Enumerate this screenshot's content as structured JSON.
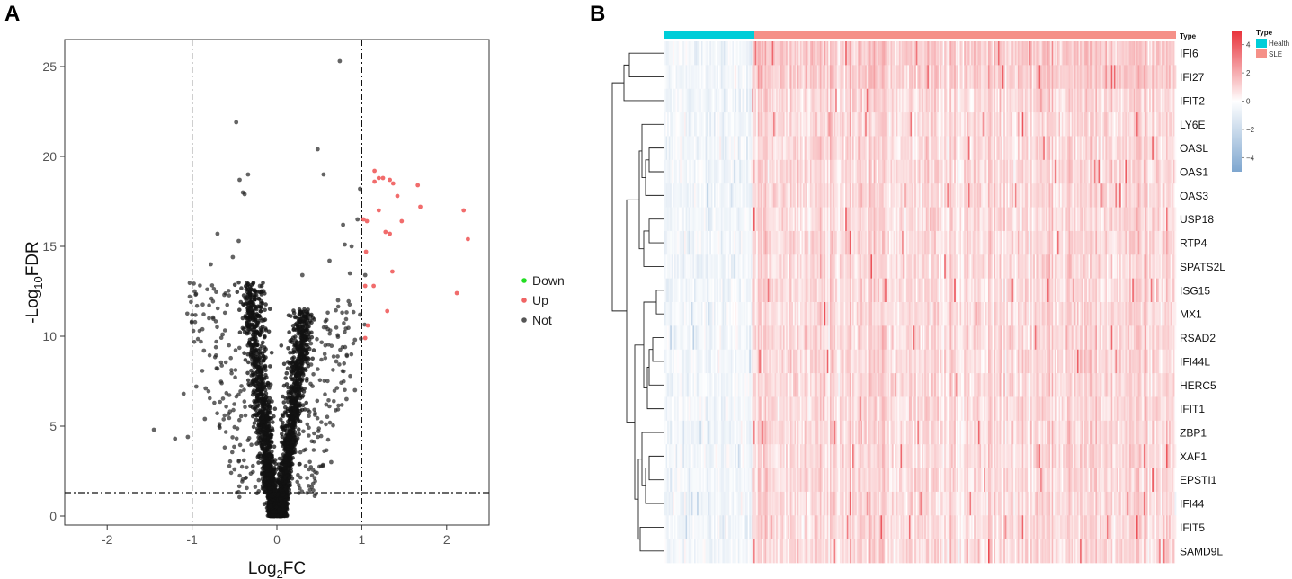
{
  "panels": {
    "a_label": "A",
    "b_label": "B"
  },
  "colors": {
    "down": "#22dd22",
    "up": "#f06464",
    "not": "#111111",
    "health": "#00cdd8",
    "sle": "#f59088",
    "heat_low": "#7ea6cf",
    "heat_mid": "#ffffff",
    "heat_high": "#e8323a"
  },
  "chart_data": [
    {
      "type": "scatter",
      "title": "",
      "xlabel": "Log2FC",
      "xlabel_main": "Log",
      "xlabel_sub": "2",
      "xlabel_tail": "FC",
      "ylabel_main": "-Log",
      "ylabel_sub": "10",
      "ylabel_tail": "FDR",
      "xlim": [
        -2.5,
        2.5
      ],
      "ylim": [
        -0.5,
        26.5
      ],
      "xticks": [
        "-2",
        "-1",
        "0",
        "1",
        "2"
      ],
      "yticks": [
        "0",
        "5",
        "10",
        "15",
        "20",
        "25"
      ],
      "thresholds": {
        "log2fc": [
          -1,
          1
        ],
        "neg_log10_fdr": 1.3
      },
      "legend": {
        "position": "right",
        "items": [
          "Down",
          "Up",
          "Not"
        ]
      },
      "series": [
        {
          "name": "Down",
          "points": []
        },
        {
          "name": "Up",
          "points": [
            [
              1.02,
              16.5
            ],
            [
              1.06,
              16.4
            ],
            [
              1.05,
              14.7
            ],
            [
              1.04,
              12.8
            ],
            [
              1.07,
              10.6
            ],
            [
              1.04,
              9.9
            ],
            [
              1.15,
              18.6
            ],
            [
              1.15,
              19.2
            ],
            [
              1.2,
              17.0
            ],
            [
              1.25,
              18.8
            ],
            [
              1.28,
              15.8
            ],
            [
              1.33,
              15.7
            ],
            [
              1.33,
              18.7
            ],
            [
              1.37,
              18.5
            ],
            [
              1.42,
              17.8
            ],
            [
              1.47,
              16.4
            ],
            [
              1.3,
              11.4
            ],
            [
              1.36,
              13.6
            ],
            [
              1.14,
              12.8
            ],
            [
              1.66,
              18.4
            ],
            [
              1.69,
              17.2
            ],
            [
              2.12,
              12.4
            ],
            [
              2.2,
              17.0
            ],
            [
              2.25,
              15.4
            ],
            [
              1.2,
              18.8
            ]
          ]
        },
        {
          "name": "Not",
          "points": [
            [
              0.74,
              25.3
            ],
            [
              -0.48,
              21.9
            ],
            [
              0.48,
              20.4
            ],
            [
              -0.34,
              19.0
            ],
            [
              -0.44,
              18.7
            ],
            [
              -0.38,
              17.9
            ],
            [
              -0.4,
              18.0
            ],
            [
              -0.7,
              15.7
            ],
            [
              -0.45,
              15.3
            ],
            [
              -0.52,
              14.4
            ],
            [
              -0.78,
              14.0
            ],
            [
              0.55,
              19.0
            ],
            [
              0.98,
              18.2
            ],
            [
              0.78,
              16.2
            ],
            [
              0.95,
              16.5
            ],
            [
              0.88,
              15.0
            ],
            [
              -0.2,
              12.8
            ],
            [
              0.3,
              13.4
            ],
            [
              0.62,
              14.2
            ],
            [
              0.8,
              15.1
            ],
            [
              -0.62,
              12.3
            ],
            [
              -0.86,
              9.2
            ],
            [
              -0.84,
              7.1
            ],
            [
              -1.45,
              4.8
            ],
            [
              -1.05,
              4.4
            ],
            [
              -1.2,
              4.3
            ],
            [
              -0.85,
              5.4
            ],
            [
              0.98,
              11.2
            ],
            [
              0.92,
              9.8
            ],
            [
              0.72,
              12.0
            ],
            [
              0.4,
              9.6
            ],
            [
              0.6,
              10.4
            ],
            [
              -0.95,
              7.2
            ],
            [
              0.92,
              7.0
            ],
            [
              0.82,
              6.5
            ],
            [
              -0.7,
              8.2
            ],
            [
              0.64,
              3.0
            ],
            [
              -0.5,
              2.6
            ],
            [
              1.04,
              13.4
            ],
            [
              -1.1,
              6.8
            ],
            [
              0.86,
              13.5
            ],
            [
              0.58,
              6.2
            ],
            [
              -0.8,
              11.0
            ],
            [
              -0.64,
              10.1
            ],
            [
              0.7,
              8.6
            ]
          ]
        }
      ]
    },
    {
      "type": "heatmap",
      "annotation_label": "Type",
      "legend_title": "Type",
      "legend_items": [
        "Health",
        "SLE"
      ],
      "groups": [
        {
          "name": "Health",
          "samples": 62
        },
        {
          "name": "SLE",
          "samples": 300
        }
      ],
      "color_scale": {
        "min": -5,
        "max": 5,
        "ticks": [
          "4",
          "2",
          "0",
          "−2",
          "−4"
        ]
      },
      "genes": [
        "IFI6",
        "IFI27",
        "IFIT2",
        "LY6E",
        "OASL",
        "OAS1",
        "OAS3",
        "USP18",
        "RTP4",
        "SPATS2L",
        "ISG15",
        "MX1",
        "RSAD2",
        "IFI44L",
        "HERC5",
        "IFIT1",
        "ZBP1",
        "XAF1",
        "EPSTI1",
        "IFI44",
        "IFIT5",
        "SAMD9L"
      ]
    }
  ]
}
